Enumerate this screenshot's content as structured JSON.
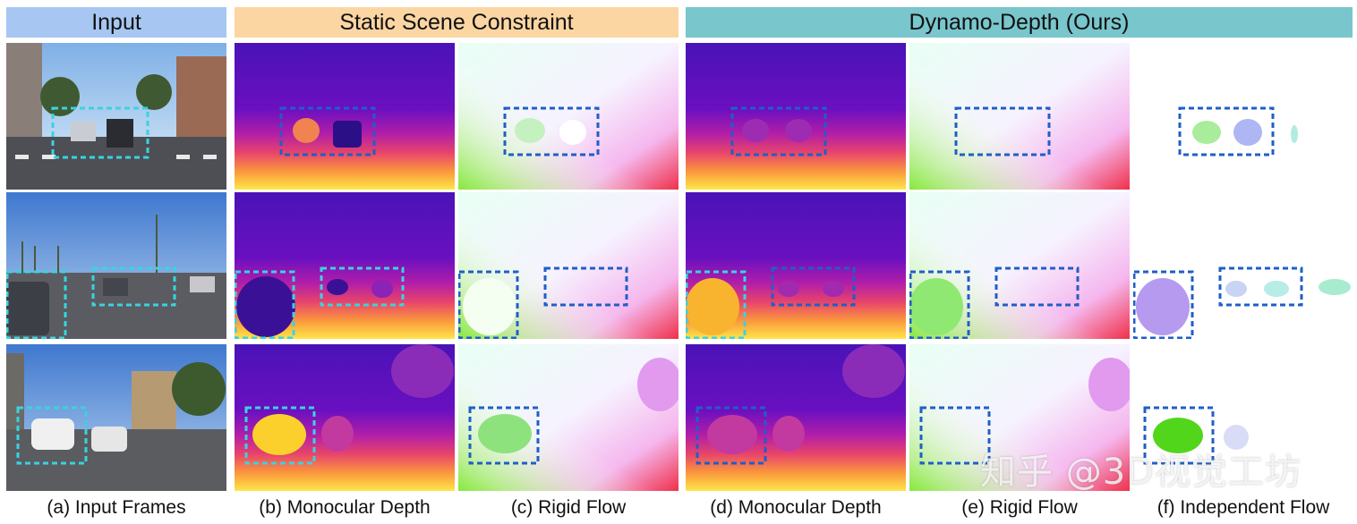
{
  "headers": {
    "input": "Input",
    "static": "Static Scene Constraint",
    "ours": "Dynamo-Depth (Ours)"
  },
  "captions": {
    "a": "(a) Input Frames",
    "b": "(b) Monocular Depth",
    "c": "(c) Rigid Flow",
    "d": "(d) Monocular Depth",
    "e": "(e) Rigid Flow",
    "f": "(f) Independent Flow"
  },
  "watermark": "知乎 @3D视觉工坊",
  "colors": {
    "input_header": "#a7c7f2",
    "static_header": "#fbd6a3",
    "ours_header": "#79c6cc",
    "highlight_box_cyan": "#39d3e0",
    "highlight_box_blue": "#1f5fc8"
  }
}
